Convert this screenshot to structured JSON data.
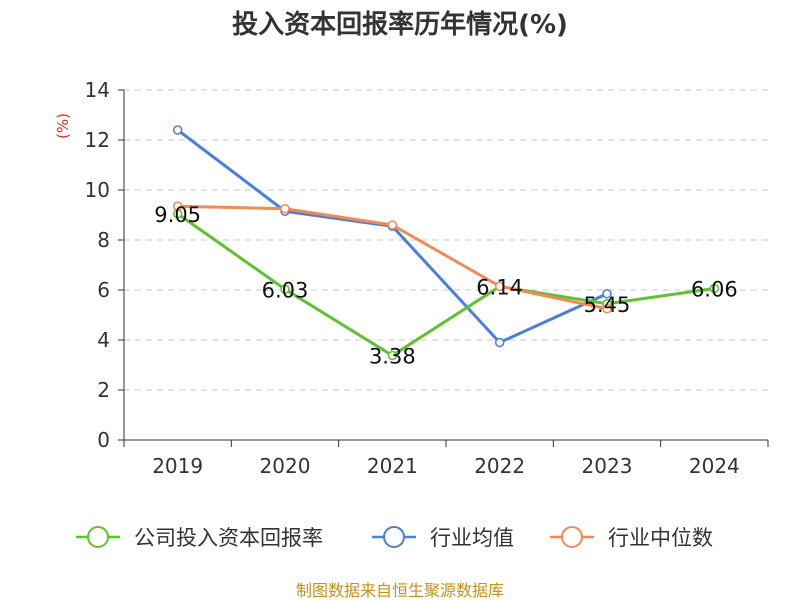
{
  "chart_data": {
    "type": "line",
    "title": "投入资本回报率历年情况(%)",
    "ylabel": "(%)",
    "categories": [
      "2019",
      "2020",
      "2021",
      "2022",
      "2023",
      "2024"
    ],
    "ylim": [
      0,
      14
    ],
    "yticks": [
      0,
      2,
      4,
      6,
      8,
      10,
      12,
      14
    ],
    "grid": true,
    "legend_position": "bottom",
    "series": [
      {
        "name": "公司投入资本回报率",
        "color": "#5ec12f",
        "values": [
          9.05,
          6.03,
          3.38,
          6.14,
          5.45,
          6.06
        ],
        "labels": [
          "9.05",
          "6.03",
          "3.38",
          "6.14",
          "5.45",
          "6.06"
        ]
      },
      {
        "name": "行业均值",
        "color": "#4a7fdb",
        "values": [
          12.4,
          9.15,
          8.55,
          3.9,
          5.85,
          null
        ]
      },
      {
        "name": "行业中位数",
        "color": "#f28a55",
        "values": [
          9.35,
          9.25,
          8.6,
          6.15,
          5.25,
          null
        ]
      }
    ]
  },
  "footer": {
    "source": "制图数据来自恒生聚源数据库"
  }
}
